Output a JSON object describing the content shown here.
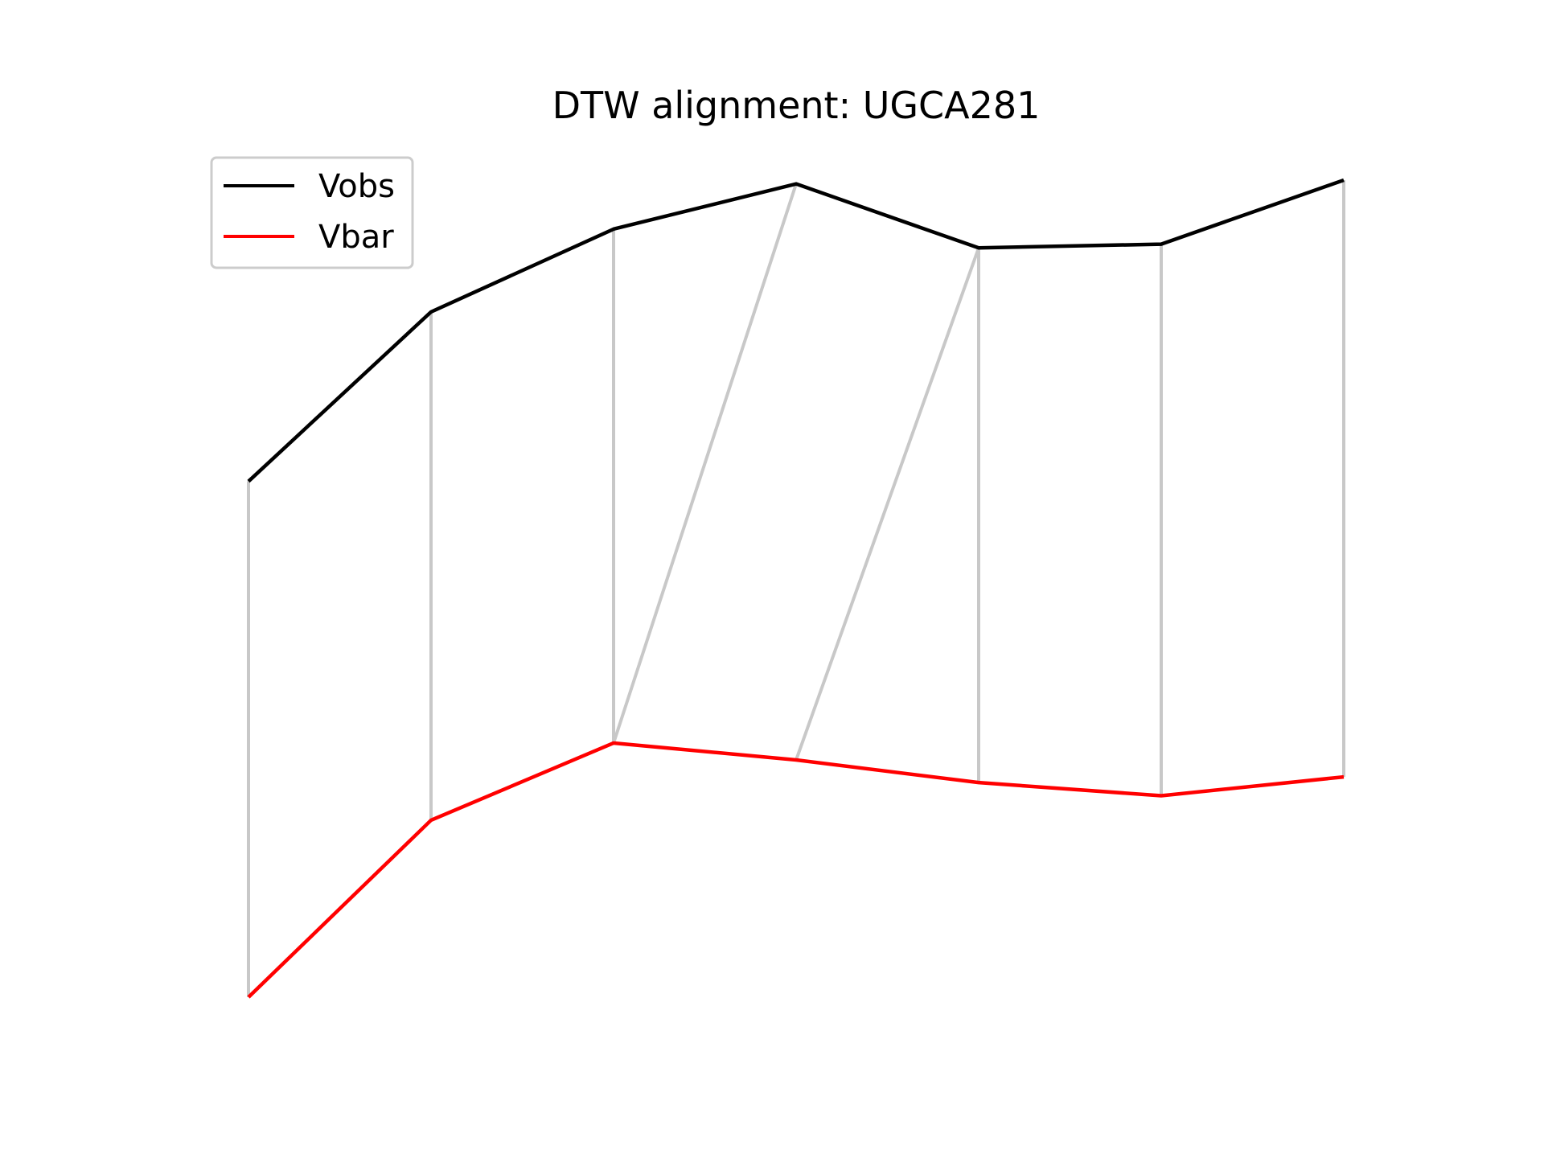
{
  "chart_data": {
    "type": "line",
    "title": "DTW alignment: UGCA281",
    "xlabel": "",
    "ylabel": "",
    "axes_visible": false,
    "grid": false,
    "legend_position": "top-left",
    "x": [
      0,
      1,
      2,
      3,
      4,
      5,
      6
    ],
    "series": [
      {
        "name": "Vobs",
        "color": "#000000",
        "values": [
          1.0,
          1.45,
          1.67,
          1.79,
          1.62,
          1.63,
          1.8
        ]
      },
      {
        "name": "Vbar",
        "color": "#ff0000",
        "values": [
          -0.37,
          0.1,
          0.305,
          0.26,
          0.2,
          0.165,
          0.215
        ]
      }
    ],
    "alignment_color": "#c8c8c8",
    "alignment_pairs": [
      [
        0,
        0
      ],
      [
        1,
        1
      ],
      [
        2,
        2
      ],
      [
        3,
        2
      ],
      [
        4,
        3
      ],
      [
        4,
        4
      ],
      [
        5,
        5
      ],
      [
        6,
        6
      ]
    ]
  }
}
